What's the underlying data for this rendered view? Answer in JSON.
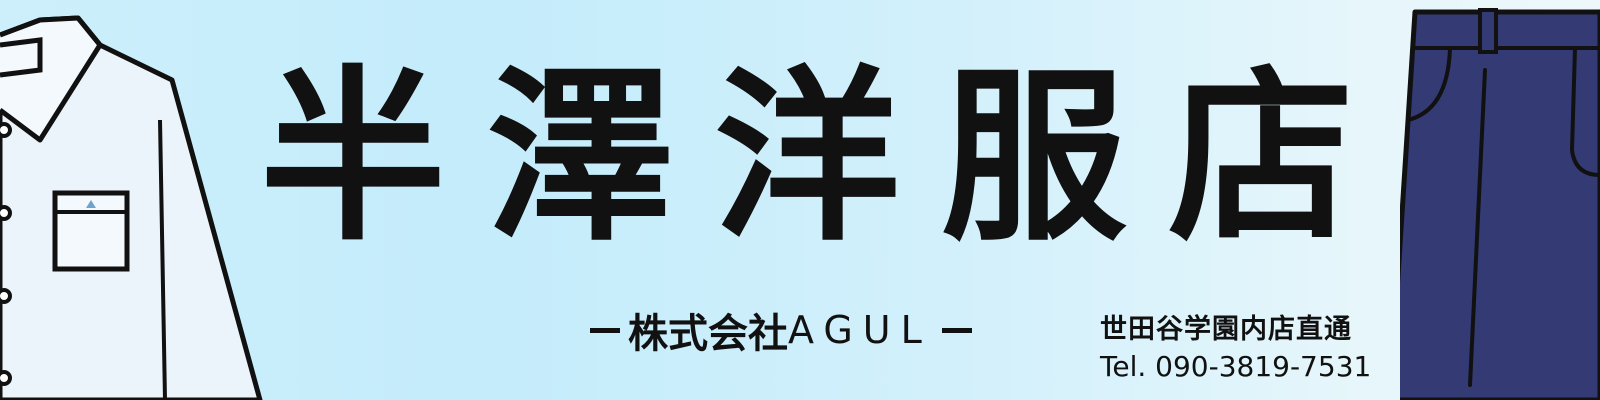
{
  "shop": {
    "title_chars": [
      "半",
      "澤",
      "洋",
      "服",
      "店"
    ],
    "company_prefix": "株式会社",
    "company_latin": "AGUL"
  },
  "contact": {
    "branch": "世田谷学園内店直通",
    "tel": "Tel. 090-3819-7531"
  },
  "colors": {
    "text": "#111111",
    "pants": "#343a73",
    "shirt": "#ecf4fb",
    "pocket_mark": "#6fa3c9"
  }
}
